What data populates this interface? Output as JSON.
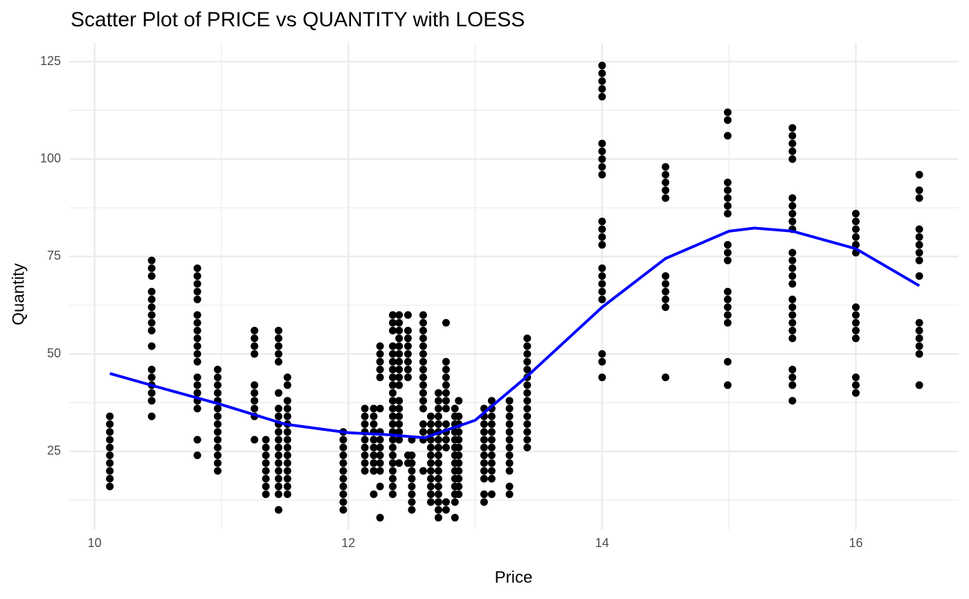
{
  "chart_data": {
    "type": "scatter",
    "title": "Scatter Plot of PRICE vs QUANTITY with LOESS",
    "x_label": "Price",
    "y_label": "Quantity",
    "xlim": [
      9.8,
      16.81
    ],
    "ylim": [
      4.9,
      129.8
    ],
    "xticks": [
      10,
      12,
      14,
      16
    ],
    "yticks": [
      25,
      50,
      75,
      100,
      125
    ],
    "x_minor_ticks": [
      11,
      13,
      15
    ],
    "y_minor_ticks": [
      12.5,
      37.5,
      62.5,
      87.5,
      112.5
    ],
    "grid": true,
    "point_color": "#000000",
    "columns": [
      {
        "x": 10.12,
        "y": [
          16,
          18,
          20,
          22,
          24,
          26,
          28,
          30,
          32,
          34
        ]
      },
      {
        "x": 10.45,
        "y": [
          34,
          38,
          40,
          42,
          44,
          46,
          52,
          56,
          58,
          60,
          62,
          64,
          66,
          70,
          72,
          74
        ]
      },
      {
        "x": 10.81,
        "y": [
          24,
          28,
          36,
          38,
          40,
          42,
          44,
          48,
          50,
          52,
          54,
          56,
          58,
          60,
          64,
          66,
          68,
          70,
          72
        ]
      },
      {
        "x": 10.97,
        "y": [
          20,
          22,
          24,
          26,
          28,
          30,
          32,
          34,
          36,
          38,
          40,
          42,
          44,
          46
        ]
      },
      {
        "x": 11.26,
        "y": [
          28,
          34,
          36,
          38,
          40,
          42,
          50,
          52,
          54,
          56
        ]
      },
      {
        "x": 11.35,
        "y": [
          14,
          16,
          18,
          20,
          22,
          24,
          26,
          28
        ]
      },
      {
        "x": 11.45,
        "y": [
          10,
          14,
          16,
          18,
          20,
          22,
          24,
          26,
          28,
          30,
          32,
          34,
          36,
          40,
          48,
          50,
          52,
          54,
          56
        ]
      },
      {
        "x": 11.52,
        "y": [
          14,
          16,
          18,
          20,
          22,
          24,
          26,
          28,
          30,
          32,
          34,
          36,
          38,
          42,
          44
        ]
      },
      {
        "x": 11.96,
        "y": [
          10,
          12,
          14,
          16,
          18,
          20,
          22,
          24,
          26,
          28,
          30
        ]
      },
      {
        "x": 12.13,
        "y": [
          20,
          22,
          24,
          26,
          28,
          30,
          32,
          34,
          36
        ]
      },
      {
        "x": 12.2,
        "y": [
          14,
          20,
          22,
          24,
          26,
          28,
          30,
          32,
          34,
          36
        ]
      },
      {
        "x": 12.25,
        "y": [
          8,
          16,
          20,
          22,
          24,
          26,
          28,
          30,
          36,
          44,
          46,
          48,
          50,
          52
        ]
      },
      {
        "x": 12.35,
        "y": [
          14,
          16,
          18,
          20,
          22,
          24,
          26,
          28,
          30,
          32,
          34,
          36,
          38,
          40,
          42,
          44,
          46,
          48,
          50,
          52,
          56,
          58,
          60
        ]
      },
      {
        "x": 12.4,
        "y": [
          22,
          28,
          30,
          32,
          34,
          36,
          38,
          42,
          44,
          46,
          48,
          50,
          52,
          54,
          56,
          58,
          60
        ]
      },
      {
        "x": 12.47,
        "y": [
          22,
          24,
          44,
          46,
          48,
          50,
          52,
          54,
          56,
          60
        ]
      },
      {
        "x": 12.5,
        "y": [
          10,
          12,
          14,
          16,
          18,
          20,
          22,
          24,
          28
        ]
      },
      {
        "x": 12.59,
        "y": [
          20,
          28,
          30,
          32,
          36,
          38,
          40,
          42,
          44,
          46,
          48,
          50,
          52,
          54,
          56,
          58,
          60
        ]
      },
      {
        "x": 12.65,
        "y": [
          12,
          14,
          16,
          18,
          20,
          22,
          24,
          26,
          28,
          30,
          32,
          34
        ]
      },
      {
        "x": 12.71,
        "y": [
          8,
          10,
          12,
          14,
          16,
          18,
          20,
          22,
          24,
          26,
          28,
          30,
          32,
          34,
          36,
          38,
          40
        ]
      },
      {
        "x": 12.77,
        "y": [
          10,
          12,
          26,
          28,
          30,
          32,
          36,
          38,
          40,
          42,
          44,
          46,
          48,
          58
        ]
      },
      {
        "x": 12.84,
        "y": [
          8,
          12,
          14,
          16,
          18,
          20,
          22,
          24,
          26,
          28,
          30,
          32,
          34,
          36
        ]
      },
      {
        "x": 12.87,
        "y": [
          14,
          16,
          18,
          20,
          22,
          24,
          26,
          28,
          30,
          32,
          34,
          38
        ]
      },
      {
        "x": 13.07,
        "y": [
          12,
          14,
          18,
          20,
          22,
          24,
          26,
          28,
          30,
          32,
          34,
          36
        ]
      },
      {
        "x": 13.13,
        "y": [
          14,
          18,
          20,
          22,
          24,
          26,
          28,
          30,
          32,
          34,
          36,
          38
        ]
      },
      {
        "x": 13.27,
        "y": [
          14,
          16,
          20,
          22,
          24,
          26,
          28,
          30,
          32,
          34,
          36,
          38
        ]
      },
      {
        "x": 13.41,
        "y": [
          26,
          28,
          30,
          32,
          34,
          36,
          38,
          40,
          42,
          44,
          46,
          48,
          50,
          52,
          54
        ]
      },
      {
        "x": 14.0,
        "y": [
          44,
          48,
          50,
          64,
          66,
          68,
          70,
          72,
          78,
          80,
          82,
          84,
          96,
          98,
          100,
          102,
          104,
          116,
          118,
          120,
          122,
          124
        ]
      },
      {
        "x": 14.5,
        "y": [
          44,
          62,
          64,
          66,
          68,
          70,
          90,
          92,
          94,
          96,
          98
        ]
      },
      {
        "x": 14.99,
        "y": [
          42,
          48,
          58,
          60,
          62,
          64,
          66,
          74,
          76,
          78,
          86,
          88,
          90,
          92,
          94,
          106,
          110,
          112
        ]
      },
      {
        "x": 15.5,
        "y": [
          38,
          42,
          44,
          46,
          54,
          56,
          58,
          60,
          62,
          64,
          68,
          70,
          72,
          74,
          76,
          82,
          84,
          86,
          88,
          90,
          100,
          102,
          104,
          106,
          108
        ]
      },
      {
        "x": 16.0,
        "y": [
          40,
          42,
          44,
          54,
          56,
          58,
          60,
          62,
          76,
          78,
          80,
          82,
          84,
          86
        ]
      },
      {
        "x": 16.5,
        "y": [
          42,
          50,
          52,
          54,
          56,
          58,
          70,
          74,
          76,
          78,
          80,
          82,
          90,
          92,
          96
        ]
      }
    ],
    "loess": {
      "color": "#0000ff",
      "x": [
        10.12,
        10.5,
        11,
        11.5,
        12,
        12.3,
        12.6,
        13,
        13.4,
        13.8,
        14,
        14.5,
        15,
        15.2,
        15.5,
        16,
        16.5
      ],
      "y": [
        45,
        41.5,
        37,
        32,
        29.8,
        29.3,
        28.5,
        33,
        44,
        56,
        62,
        74.5,
        81.5,
        82.3,
        81.5,
        77,
        67.5
      ]
    }
  }
}
